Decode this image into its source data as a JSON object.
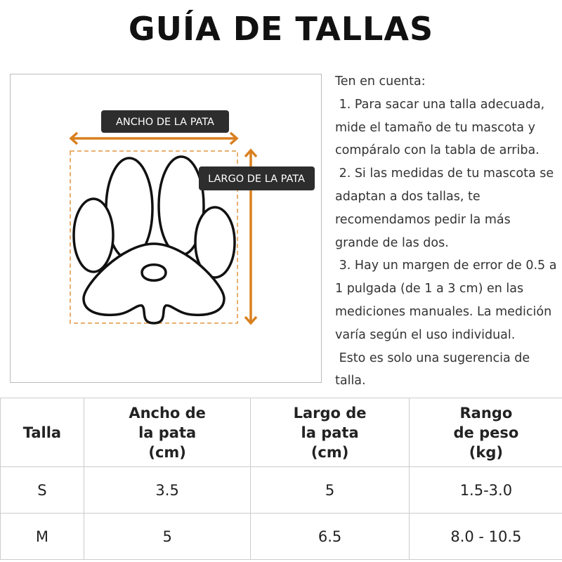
{
  "title": "GUÍA DE TALLAS",
  "diagram": {
    "width_label": "ANCHO DE LA PATA",
    "length_label": "LARGO DE LA PATA"
  },
  "notes": {
    "lines": [
      "Ten en cuenta:",
      " 1. Para sacar una talla adecuada,",
      "mide el tamaño de tu mascota y",
      "compáralo con la tabla de arriba.",
      " 2. Si las medidas de tu mascota se",
      "adaptan a dos tallas, te",
      "recomendamos pedir la más",
      "grande de las dos.",
      " 3. Hay un margen de error de 0.5 a",
      "1 pulgada (de 1 a 3 cm) en las",
      "mediciones manuales. La medición",
      "varía según el uso individual.",
      " Esto es solo una sugerencia de",
      "talla."
    ]
  },
  "table": {
    "header": [
      "Talla",
      "Ancho de\nla pata\n(cm)",
      "Largo de\nla pata\n(cm)",
      "Rango\nde peso\n(kg)"
    ],
    "rows": [
      [
        "S",
        "3.5",
        "5",
        "1.5-3.0"
      ],
      [
        "M",
        "5",
        "6.5",
        "8.0 - 10.5"
      ]
    ]
  }
}
